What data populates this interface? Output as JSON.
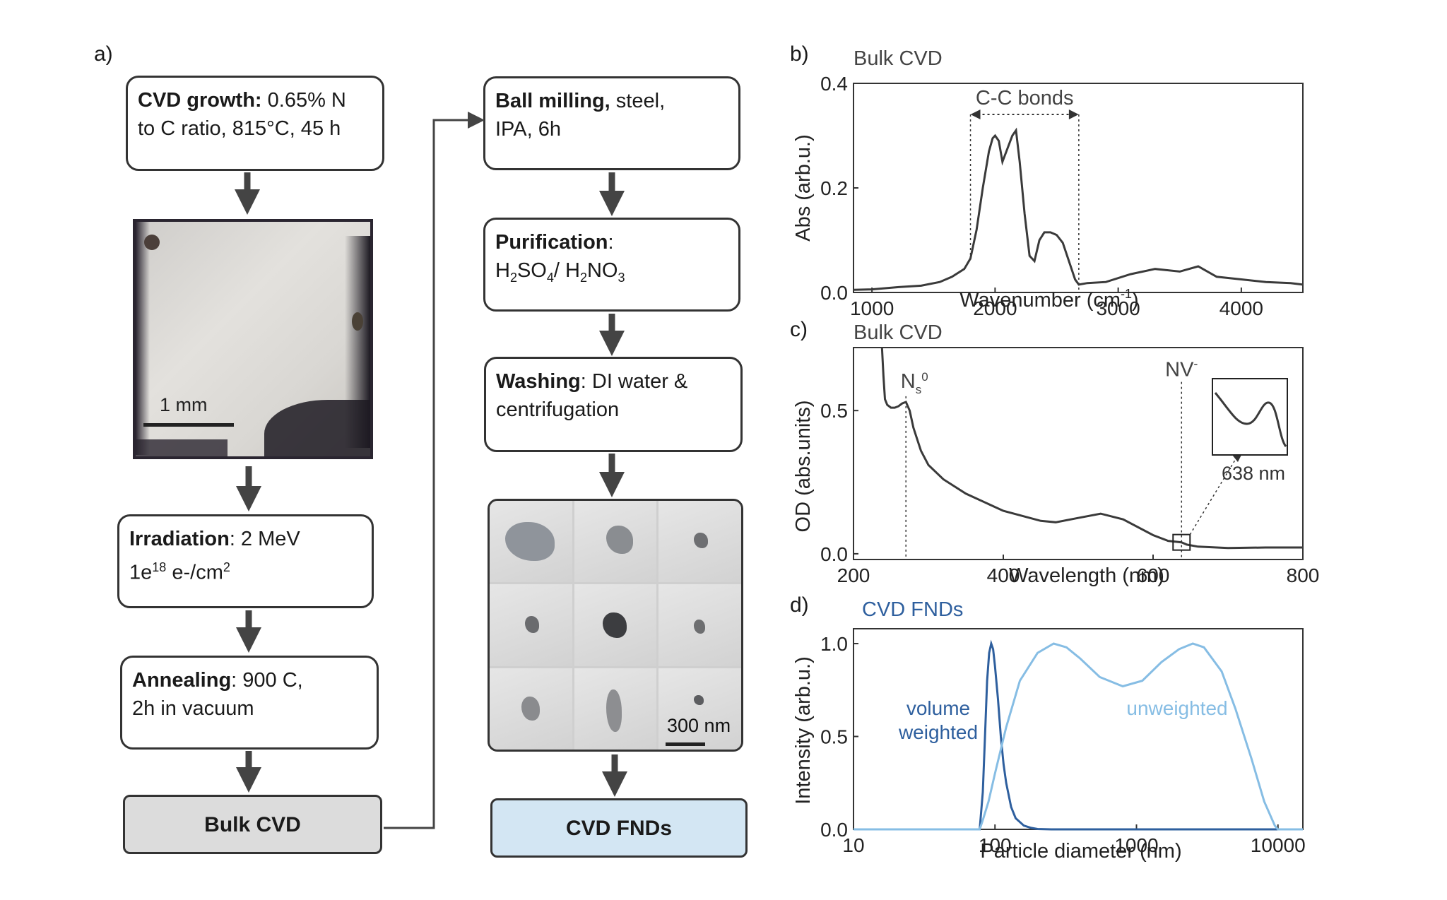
{
  "panels": {
    "a": "a)",
    "b": "b)",
    "c": "c)",
    "d": "d)"
  },
  "flow": {
    "cvd_growth": {
      "bold": "CVD growth:",
      "line1_rest": " 0.65% N",
      "line2": "to C ratio, 815°C, 45 h"
    },
    "photo_scale": "1 mm",
    "irradiation": {
      "bold": "Irradiation",
      "line1_rest": ": 2 MeV",
      "line2_a": "1e",
      "line2_sup": "18",
      "line2_b": " e-/cm",
      "line2_sup2": "2"
    },
    "annealing": {
      "bold": "Annealing",
      "line1_rest": ": 900 C,",
      "line2": "2h in vacuum"
    },
    "bulk_cvd": "Bulk CVD",
    "ball_milling": {
      "bold": "Ball milling,",
      "line1_rest": " steel,",
      "line2": "IPA, 6h"
    },
    "purification": {
      "bold": "Purification",
      "line1_rest": ":",
      "h": "H",
      "sub2": "2",
      "so": "SO",
      "sub4": "4",
      "slash": "/ H",
      "sub2b": "2",
      "no": "NO",
      "sub3": "3"
    },
    "washing": {
      "bold": "Washing",
      "line1_rest": ": DI water &",
      "line2": "centrifugation"
    },
    "tem_scale": "300 nm",
    "cvd_fnds": "CVD FNDs"
  },
  "chart_data": [
    {
      "panel": "b",
      "type": "line",
      "title": "Bulk CVD",
      "xlabel": "Wavenumber (cm",
      "xlabel_sup": "-1",
      "xlabel_end": ")",
      "ylabel": "Abs (arb.u.)",
      "xlim": [
        850,
        4500
      ],
      "ylim": [
        0,
        0.4
      ],
      "xticks": [
        "1000",
        "2000",
        "3000",
        "4000"
      ],
      "xtick_values": [
        1000,
        2000,
        3000,
        4000
      ],
      "yticks": [
        "0.0",
        "0.2",
        "0.4"
      ],
      "ytick_values": [
        0,
        0.2,
        0.4
      ],
      "annotation": "C-C bonds",
      "annotation_range": [
        1800,
        2680
      ],
      "series": [
        {
          "name": "Bulk CVD",
          "color": "#3a3a3a",
          "x": [
            850,
            1000,
            1200,
            1400,
            1550,
            1650,
            1750,
            1800,
            1850,
            1900,
            1950,
            1980,
            2000,
            2030,
            2060,
            2100,
            2140,
            2170,
            2200,
            2240,
            2280,
            2320,
            2360,
            2400,
            2450,
            2500,
            2550,
            2600,
            2650,
            2680,
            2750,
            2900,
            3100,
            3300,
            3500,
            3650,
            3800,
            4000,
            4200,
            4400,
            4500
          ],
          "values": [
            0.005,
            0.006,
            0.01,
            0.013,
            0.02,
            0.03,
            0.045,
            0.065,
            0.12,
            0.2,
            0.27,
            0.295,
            0.3,
            0.29,
            0.25,
            0.275,
            0.3,
            0.31,
            0.25,
            0.15,
            0.07,
            0.06,
            0.1,
            0.115,
            0.115,
            0.11,
            0.095,
            0.06,
            0.025,
            0.015,
            0.018,
            0.02,
            0.035,
            0.045,
            0.04,
            0.05,
            0.03,
            0.025,
            0.02,
            0.018,
            0.015
          ]
        }
      ]
    },
    {
      "panel": "c",
      "type": "line",
      "title": "Bulk CVD",
      "xlabel": "Wavelength (nm)",
      "ylabel": "OD (abs.units)",
      "xlim": [
        200,
        800
      ],
      "ylim": [
        -0.02,
        0.72
      ],
      "xticks": [
        "200",
        "400",
        "600",
        "800"
      ],
      "xtick_values": [
        200,
        400,
        600,
        800
      ],
      "yticks": [
        "0.0",
        "0.5"
      ],
      "ytick_values": [
        0,
        0.5
      ],
      "annotation_ns": "N",
      "annotation_ns_sub": "s",
      "annotation_ns_sup": "0",
      "annotation_nv": "NV",
      "annotation_nv_sup": "-",
      "annotation_ns_x": 270,
      "annotation_nv_x": 638,
      "inset_label": "638 nm",
      "series": [
        {
          "name": "Bulk CVD",
          "color": "#3a3a3a",
          "x": [
            238,
            240,
            242,
            245,
            250,
            255,
            260,
            265,
            270,
            275,
            280,
            290,
            300,
            320,
            350,
            400,
            450,
            470,
            500,
            530,
            560,
            600,
            620,
            638,
            645,
            660,
            700,
            750,
            800
          ],
          "values": [
            0.72,
            0.62,
            0.54,
            0.52,
            0.51,
            0.51,
            0.515,
            0.525,
            0.53,
            0.5,
            0.44,
            0.36,
            0.31,
            0.26,
            0.21,
            0.15,
            0.115,
            0.11,
            0.125,
            0.14,
            0.12,
            0.065,
            0.045,
            0.04,
            0.032,
            0.025,
            0.02,
            0.022,
            0.022
          ]
        }
      ]
    },
    {
      "panel": "d",
      "type": "line",
      "title": "CVD FNDs",
      "xlabel": "Particle diameter (nm)",
      "ylabel": "Intensity (arb.u.)",
      "xscale": "log",
      "xlim": [
        10,
        15000
      ],
      "ylim": [
        0,
        1.08
      ],
      "xticks": [
        "10",
        "100",
        "1000",
        "10000"
      ],
      "xtick_values": [
        10,
        100,
        1000,
        10000
      ],
      "yticks": [
        "0.0",
        "0.5",
        "1.0"
      ],
      "ytick_values": [
        0,
        0.5,
        1
      ],
      "series": [
        {
          "name": "volume weighted",
          "label_line1": "volume",
          "label_line2": "weighted",
          "color": "#2e5f9e",
          "x": [
            10,
            70,
            78,
            82,
            85,
            88,
            91,
            94,
            97,
            100,
            105,
            110,
            115,
            120,
            130,
            140,
            160,
            180,
            200,
            250,
            15000
          ],
          "values": [
            0,
            0,
            0,
            0.2,
            0.5,
            0.8,
            0.95,
            1.0,
            0.97,
            0.88,
            0.7,
            0.5,
            0.35,
            0.25,
            0.12,
            0.06,
            0.02,
            0.008,
            0.002,
            0,
            0
          ]
        },
        {
          "name": "unweighted",
          "label_line1": "unweighted",
          "color": "#86bde4",
          "x": [
            10,
            78,
            82,
            90,
            100,
            120,
            150,
            200,
            260,
            320,
            400,
            550,
            800,
            1100,
            1500,
            2000,
            2500,
            3000,
            4000,
            5000,
            6500,
            8000,
            9500,
            10000,
            15000
          ],
          "values": [
            0,
            0,
            0.05,
            0.15,
            0.3,
            0.55,
            0.8,
            0.95,
            1.0,
            0.98,
            0.92,
            0.82,
            0.77,
            0.8,
            0.9,
            0.97,
            1.0,
            0.98,
            0.85,
            0.65,
            0.38,
            0.15,
            0.02,
            0,
            0
          ]
        }
      ]
    }
  ]
}
